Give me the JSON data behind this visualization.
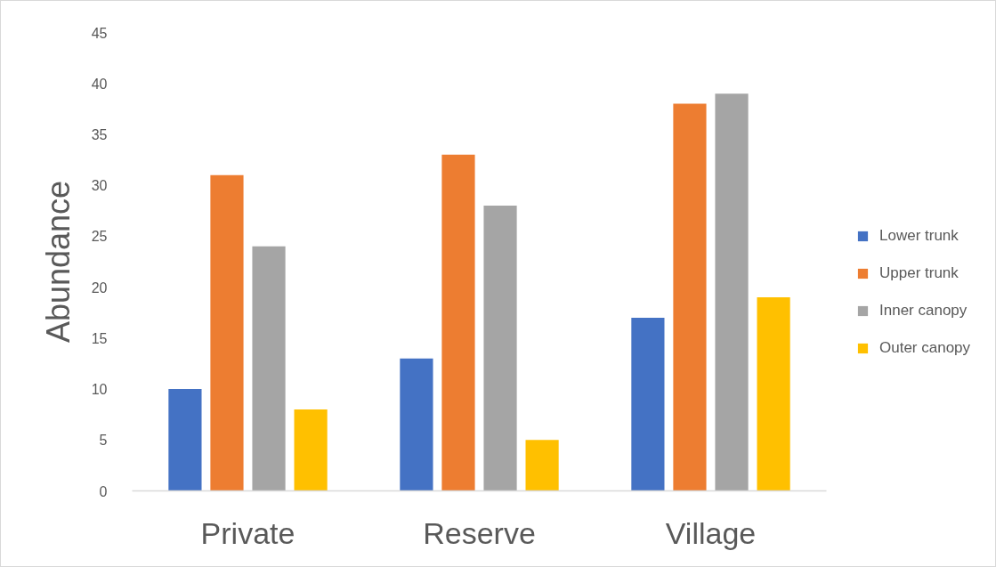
{
  "chart_data": {
    "type": "bar",
    "ylabel": "Abundance",
    "categories": [
      "Private",
      "Reserve",
      "Village"
    ],
    "series": [
      {
        "name": "Lower trunk",
        "color": "#4472c4",
        "values": [
          10,
          13,
          17
        ]
      },
      {
        "name": "Upper trunk",
        "color": "#ed7d31",
        "values": [
          31,
          33,
          38
        ]
      },
      {
        "name": "Inner canopy",
        "color": "#a5a5a5",
        "values": [
          24,
          28,
          39
        ]
      },
      {
        "name": "Outer canopy",
        "color": "#ffc000",
        "values": [
          8,
          5,
          19
        ]
      }
    ],
    "ylim": [
      0,
      45
    ],
    "yticks": [
      0,
      5,
      10,
      15,
      20,
      25,
      30,
      35,
      40,
      45
    ],
    "legend": "right"
  }
}
